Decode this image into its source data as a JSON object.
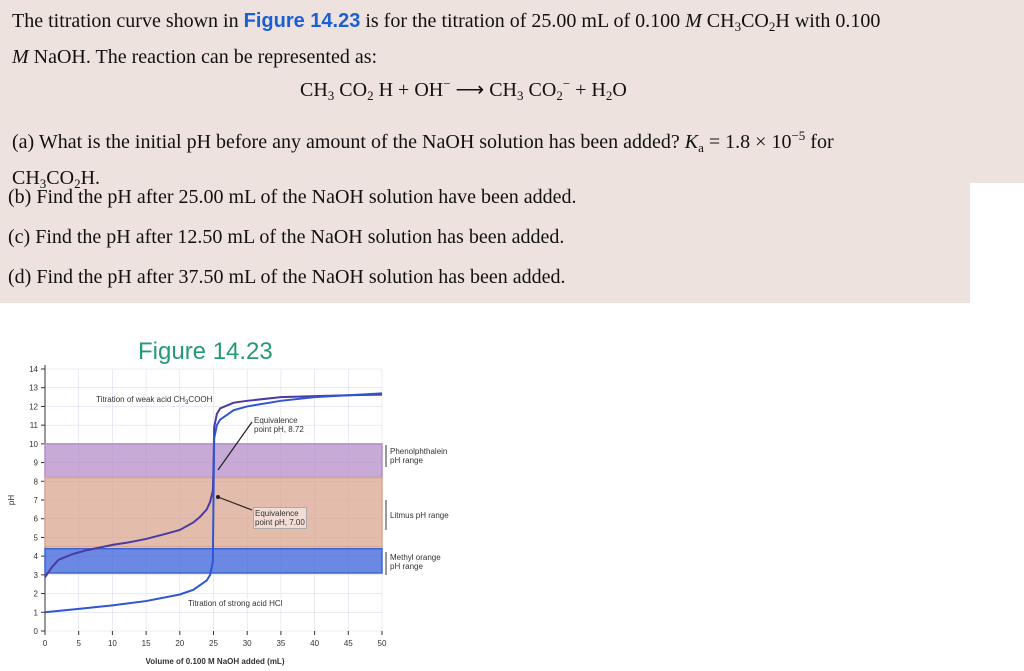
{
  "problem": {
    "intro": [
      "The titration curve shown in ",
      "Figure 14.23",
      " is for the titration of 25.00 mL of 0.100 ",
      "M",
      " CH",
      "3",
      "CO",
      "2",
      "H with 0.100",
      "M",
      " NaOH. The reaction can be represented as:"
    ],
    "equation": [
      "CH",
      "3",
      " CO",
      "2",
      " H + OH",
      "−",
      " ⟶ CH",
      "3",
      " CO",
      "2",
      "−",
      " + H",
      "2",
      "O"
    ],
    "part_a": [
      "(a) What is the initial pH before any amount of the NaOH solution has been added? ",
      "K",
      "a",
      " = 1.8 × 10",
      "−5",
      " for",
      "CH",
      "3",
      "CO",
      "2",
      "H."
    ],
    "part_b": "(b) Find the pH after 25.00 mL of the NaOH solution have been added.",
    "part_c": "(c) Find the pH after 12.50 mL of the NaOH solution has been added.",
    "part_d": "(d) Find the pH after 37.50 mL of the NaOH solution has been added."
  },
  "figure": {
    "title": "Figure 14.23",
    "chart_data": {
      "type": "line",
      "x_label": "Volume of 0.100 M NaOH added (mL)",
      "y_label": "pH",
      "xlim": [
        0,
        50
      ],
      "ylim": [
        0,
        14
      ],
      "xticks": [
        0,
        5,
        10,
        15,
        20,
        25,
        30,
        35,
        40,
        45,
        50
      ],
      "yticks": [
        0,
        1,
        2,
        3,
        4,
        5,
        6,
        7,
        8,
        9,
        10,
        11,
        12,
        13,
        14
      ],
      "grid": true,
      "bands": [
        {
          "label": [
            "Phenolphthalein",
            "pH range"
          ],
          "from": 8.2,
          "to": 10,
          "color": "#b48ec8"
        },
        {
          "label": [
            "Litmus pH range"
          ],
          "from": 4.5,
          "to": 8.2,
          "color": "#d9a590"
        },
        {
          "label": [
            "Methyl orange",
            "pH range"
          ],
          "from": 3.1,
          "to": 4.4,
          "color": "#3a62d8"
        }
      ],
      "series": [
        {
          "color": "#4b3aa0",
          "x": [
            0,
            1,
            2,
            4,
            6,
            8,
            10,
            12.5,
            15,
            18,
            20,
            22,
            23,
            24,
            24.5,
            24.9,
            25,
            25.1,
            25.5,
            26,
            28,
            30,
            35,
            40,
            45,
            50
          ],
          "values": [
            2.87,
            3.4,
            3.8,
            4.1,
            4.3,
            4.45,
            4.6,
            4.74,
            4.92,
            5.2,
            5.4,
            5.8,
            6.1,
            6.5,
            6.9,
            7.5,
            8.72,
            10.9,
            11.6,
            11.9,
            12.2,
            12.3,
            12.5,
            12.55,
            12.6,
            12.63
          ]
        },
        {
          "color": "#2f55d4",
          "x": [
            0,
            5,
            10,
            15,
            20,
            22,
            24,
            24.5,
            24.9,
            25,
            25.1,
            25.5,
            26,
            28,
            30,
            35,
            40,
            45,
            50
          ],
          "values": [
            1,
            1.18,
            1.37,
            1.6,
            1.95,
            2.2,
            2.7,
            3,
            3.7,
            7,
            10.3,
            11,
            11.3,
            11.8,
            12,
            12.3,
            12.5,
            12.6,
            12.7
          ]
        }
      ],
      "annotations": [
        [
          "Titration of weak acid CH",
          "3",
          "COOH"
        ],
        [
          "Equivalence",
          "point pH, 8.72"
        ],
        [
          "Equivalence",
          "point pH, 7.00"
        ],
        [
          "Titration of strong acid HCl"
        ]
      ]
    }
  }
}
